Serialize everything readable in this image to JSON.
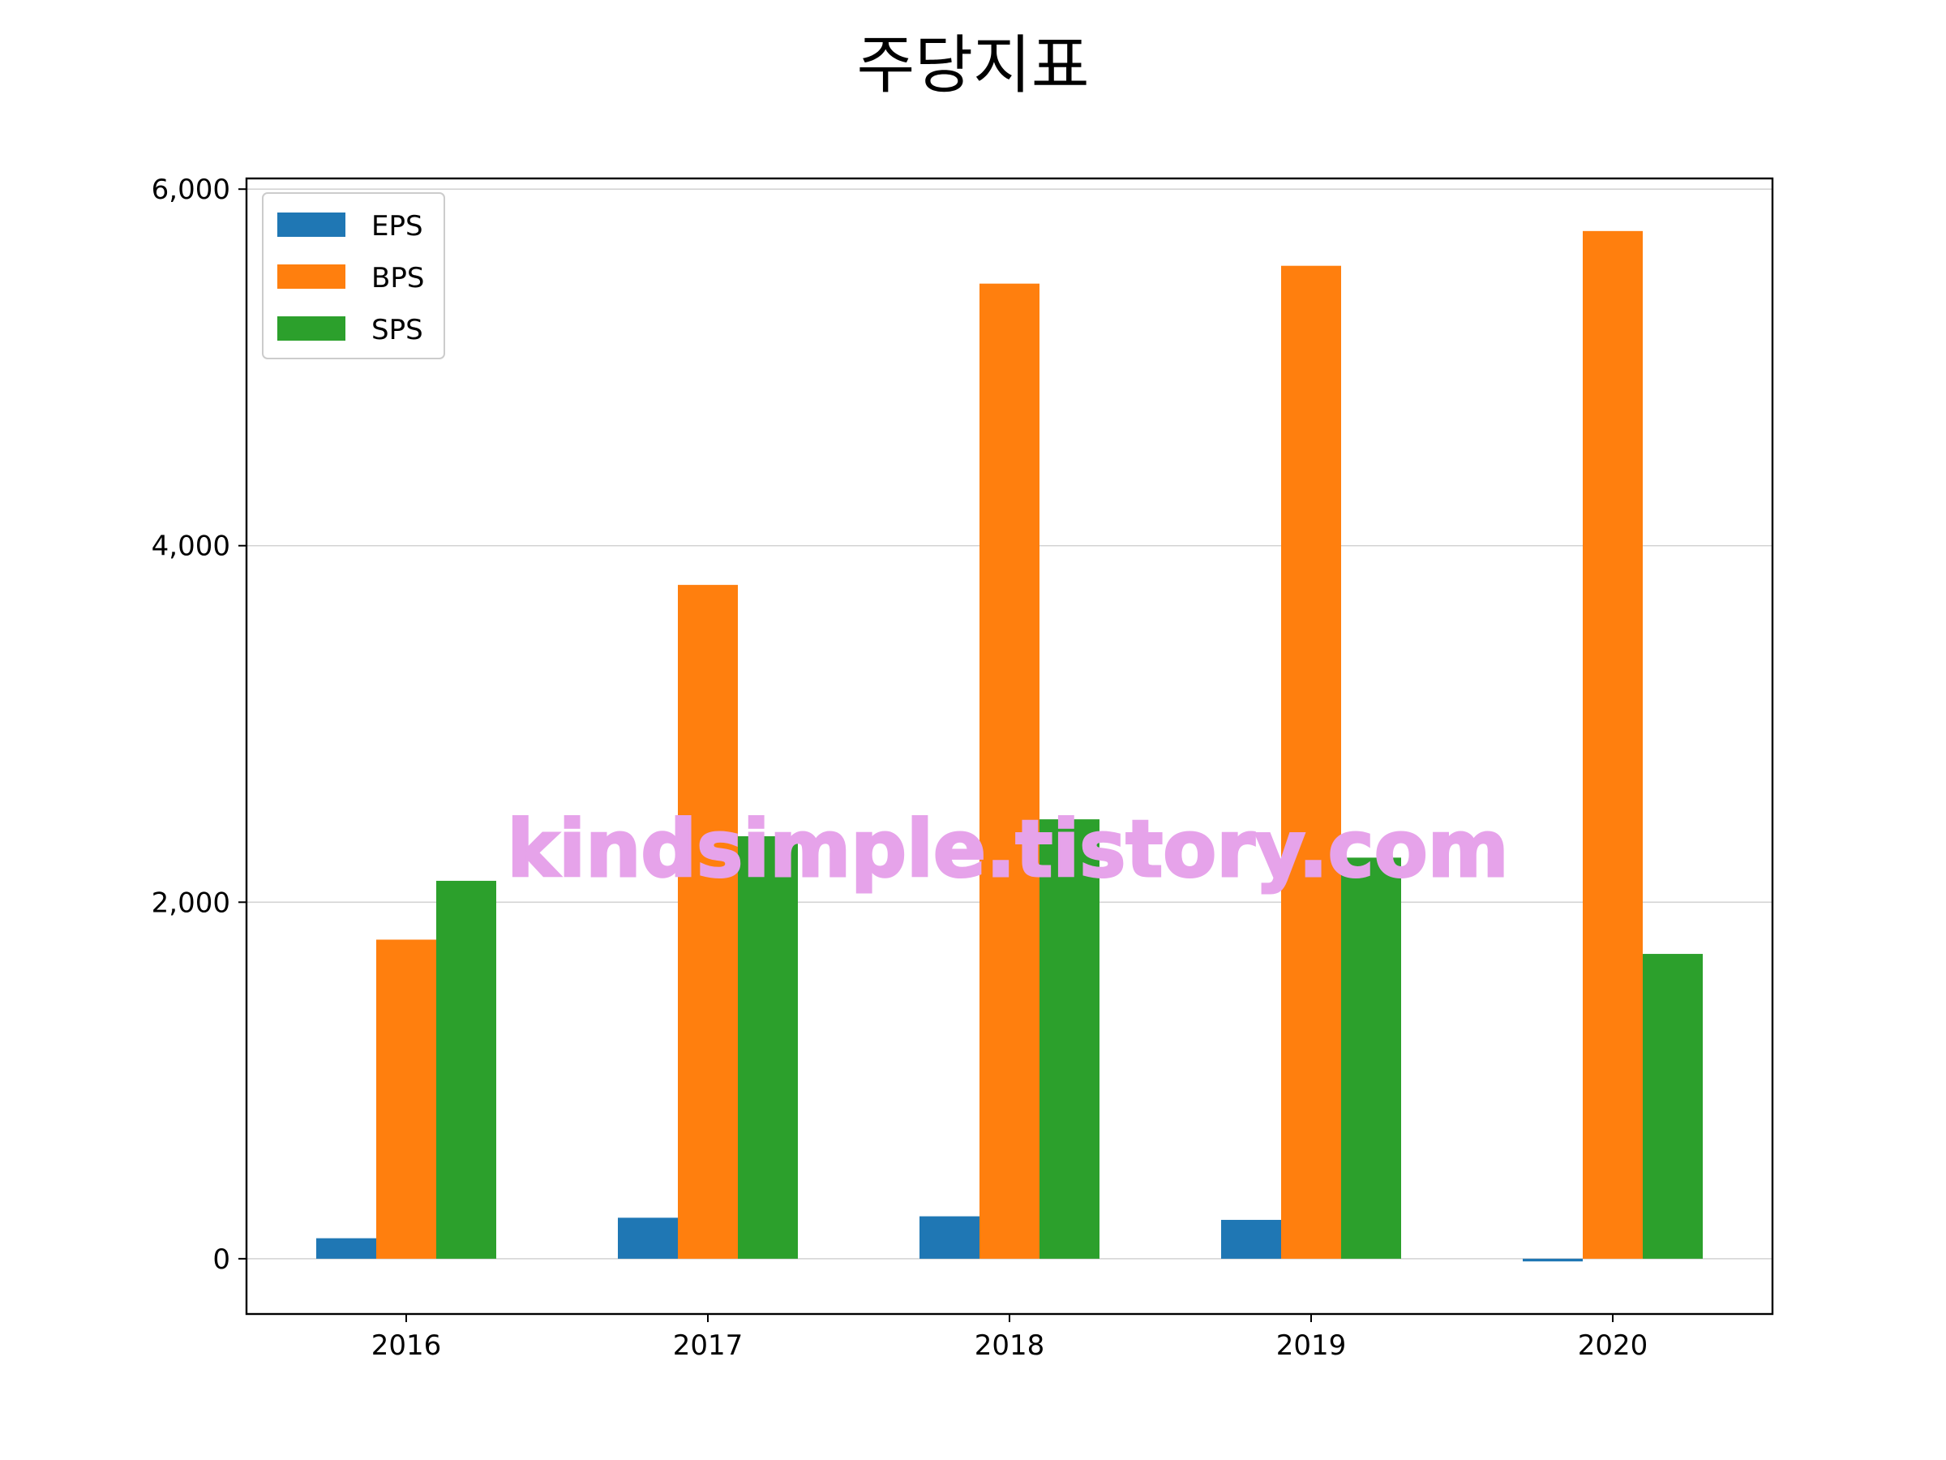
{
  "chart_data": {
    "type": "bar",
    "title": "주당지표",
    "categories": [
      "2016",
      "2017",
      "2018",
      "2019",
      "2020"
    ],
    "series": [
      {
        "name": "EPS",
        "color": "#1f77b4",
        "values": [
          115,
          230,
          238,
          218,
          -15
        ]
      },
      {
        "name": "BPS",
        "color": "#ff7f0e",
        "values": [
          1790,
          3780,
          5470,
          5570,
          5765
        ]
      },
      {
        "name": "SPS",
        "color": "#2ca02c",
        "values": [
          2120,
          2370,
          2465,
          2250,
          1710
        ]
      }
    ],
    "ylim": [
      -310,
      6060
    ],
    "yticks": [
      0,
      2000,
      4000,
      6000
    ],
    "ytick_labels": [
      "0",
      "2,000",
      "4,000",
      "6,000"
    ],
    "xlabel": "",
    "ylabel": "",
    "grid": "y",
    "legend": "top-left"
  },
  "watermark": {
    "text": "kindsimple.tistory.com",
    "color": "#e6a3ea"
  }
}
